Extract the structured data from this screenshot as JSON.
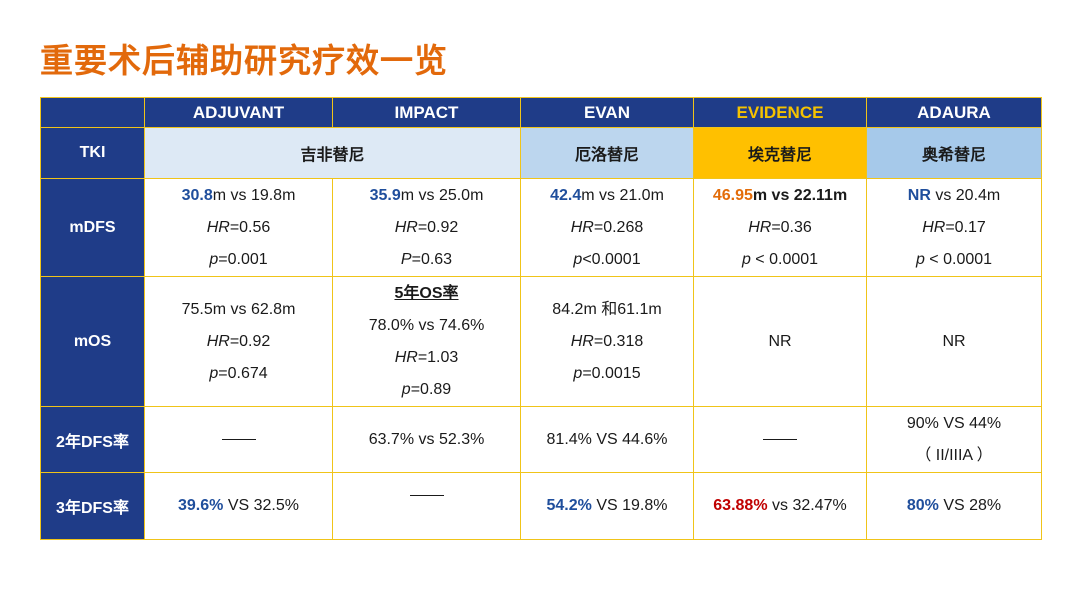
{
  "title": "重要术后辅助研究疗效一览",
  "header": {
    "c1": "ADJUVANT",
    "c2": "IMPACT",
    "c3": "EVAN",
    "c4": "EVIDENCE",
    "c5": "ADAURA"
  },
  "tki": {
    "label": "TKI",
    "d1": "吉非替尼",
    "d2": "厄洛替尼",
    "d3": "埃克替尼",
    "d4": "奥希替尼"
  },
  "mdfs": {
    "label": "mDFS",
    "c1": {
      "hl": "30.8",
      "rest": "m vs 19.8m",
      "hr": "=0.56",
      "p": "=0.001"
    },
    "c2": {
      "hl": "35.9",
      "rest": "m vs 25.0m",
      "hr": "=0.92",
      "p": "=0.63"
    },
    "c3": {
      "hl": "42.4",
      "rest": "m vs 21.0m",
      "hr": "=0.268",
      "p": "<0.0001"
    },
    "c4": {
      "hl": "46.95",
      "rest": "m vs 22.11m",
      "hr": "=0.36",
      "p": " < 0.0001"
    },
    "c5": {
      "hl": "NR",
      "rest": " vs 20.4m",
      "hr": "=0.17",
      "p": " < 0.0001"
    }
  },
  "mos": {
    "label": "mOS",
    "c1": {
      "v": "75.5m vs 62.8m",
      "hr": "=0.92",
      "p": "=0.674"
    },
    "c2": {
      "sub": "5年OS率",
      "v": "78.0% vs 74.6%",
      "hr": "=1.03",
      "p": "=0.89"
    },
    "c3": {
      "v": "84.2m 和61.1m",
      "hr": "=0.318",
      "p": "=0.0015"
    },
    "c4": "NR",
    "c5": "NR"
  },
  "dfs2": {
    "label": "2年DFS率",
    "c2": "63.7% vs 52.3%",
    "c3": "81.4% VS 44.6%",
    "c5": "90% VS 44%",
    "c5b": "（ II/IIIA ）"
  },
  "dfs3": {
    "label": "3年DFS率",
    "c1": {
      "hl": "39.6%",
      "rest": " VS 32.5%"
    },
    "c3": {
      "hl": "54.2%",
      "rest": " VS 19.8%"
    },
    "c4": {
      "hl": "63.88%",
      "rest": " vs 32.47%"
    },
    "c5": {
      "hl": "80%",
      "rest": " VS 28%"
    }
  },
  "labels": {
    "hr": "HR",
    "p": "p",
    "P": "P"
  }
}
